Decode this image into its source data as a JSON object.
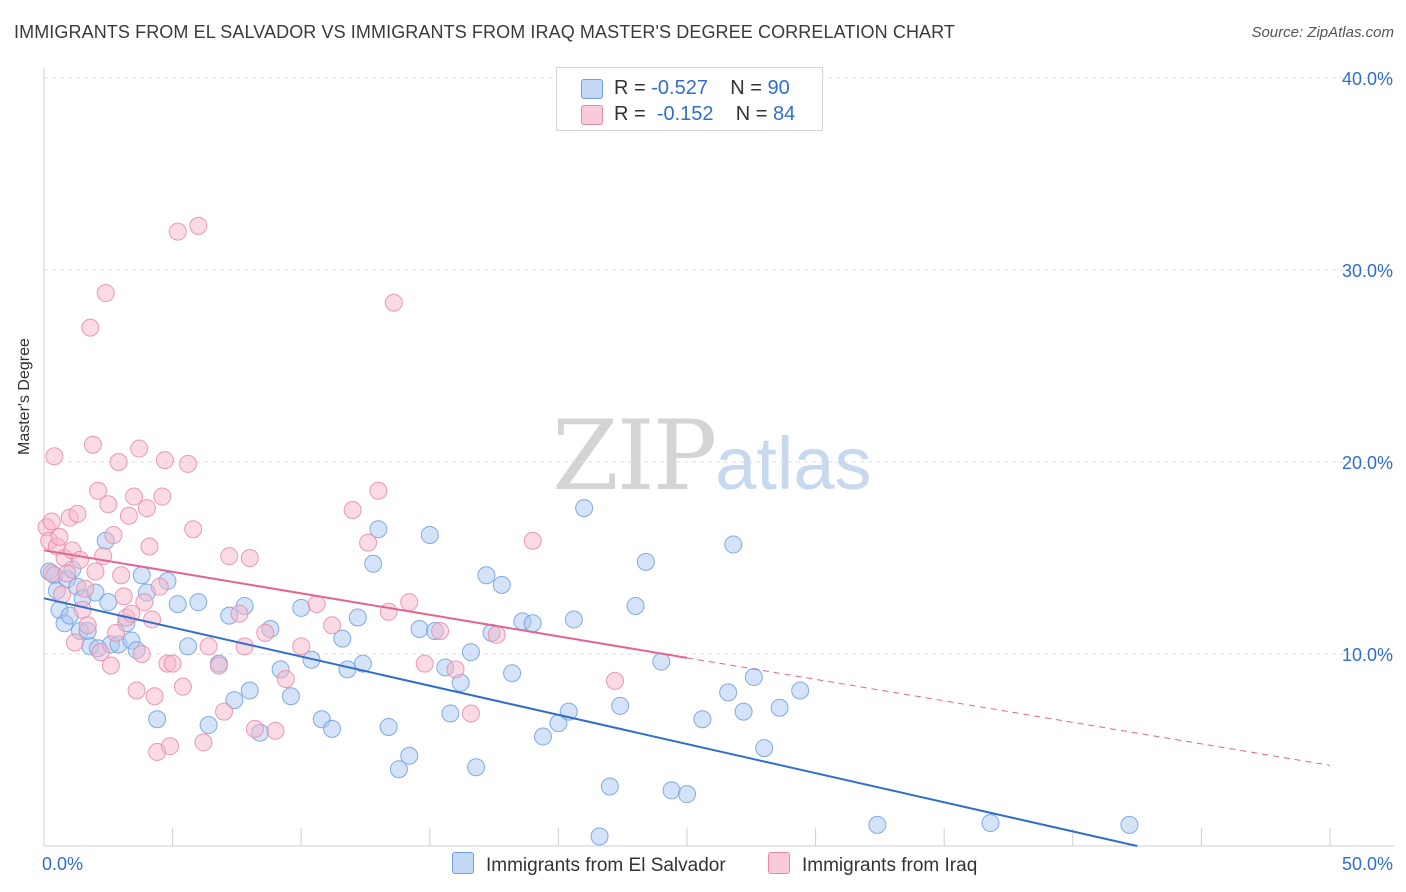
{
  "header": {
    "title": "IMMIGRANTS FROM EL SALVADOR VS IMMIGRANTS FROM IRAQ MASTER'S DEGREE CORRELATION CHART",
    "source": "Source: ZipAtlas.com"
  },
  "watermark": {
    "zip": "ZIP",
    "atlas": "atlas"
  },
  "legend": {
    "rows": [
      {
        "r_label": "R = ",
        "r_value": "-0.527",
        "n_label": "N = ",
        "n_value": "90"
      },
      {
        "r_label": "R = ",
        "r_value": "-0.152",
        "n_label": "N = ",
        "n_value": "84"
      }
    ]
  },
  "colors": {
    "blue_fill": "#aac8f0",
    "blue_stroke": "#6f9fdc",
    "blue_line": "#2f6fca",
    "pink_fill": "#f5b8cb",
    "pink_stroke": "#e98aa8",
    "pink_line": "#e06592",
    "grid": "#dedede",
    "tick_label": "#2f6fca"
  },
  "chart_data": {
    "type": "scatter",
    "title": "IMMIGRANTS FROM EL SALVADOR VS IMMIGRANTS FROM IRAQ MASTER'S DEGREE CORRELATION CHART",
    "xlabel": "",
    "ylabel": "Master's Degree",
    "xlim": [
      0,
      50
    ],
    "ylim": [
      0,
      40
    ],
    "x_tick_labels": [
      "0.0%",
      "50.0%"
    ],
    "y_ticks": [
      10,
      20,
      30,
      40
    ],
    "y_tick_labels": [
      "10.0%",
      "20.0%",
      "30.0%",
      "40.0%"
    ],
    "grid": true,
    "legend_position": "top-center",
    "series": [
      {
        "name": "Immigrants from El Salvador",
        "R": -0.527,
        "N": 90,
        "trend": {
          "x": [
            0,
            42.5
          ],
          "y": [
            12.9,
            0
          ],
          "dashed_to": null
        },
        "points": [
          [
            0.2,
            14.3
          ],
          [
            0.4,
            14.1
          ],
          [
            0.5,
            13.3
          ],
          [
            0.6,
            12.3
          ],
          [
            0.8,
            11.6
          ],
          [
            0.9,
            13.9
          ],
          [
            1.0,
            12.0
          ],
          [
            1.1,
            14.4
          ],
          [
            1.3,
            13.5
          ],
          [
            1.4,
            11.2
          ],
          [
            1.5,
            12.9
          ],
          [
            1.7,
            11.2
          ],
          [
            1.8,
            10.4
          ],
          [
            2.0,
            13.2
          ],
          [
            2.1,
            10.3
          ],
          [
            2.4,
            15.9
          ],
          [
            2.5,
            12.7
          ],
          [
            2.6,
            10.5
          ],
          [
            2.9,
            10.5
          ],
          [
            3.2,
            11.6
          ],
          [
            3.4,
            10.7
          ],
          [
            3.6,
            10.2
          ],
          [
            3.8,
            14.1
          ],
          [
            4.0,
            13.2
          ],
          [
            4.4,
            6.6
          ],
          [
            4.8,
            13.8
          ],
          [
            5.2,
            12.6
          ],
          [
            5.6,
            10.4
          ],
          [
            6.0,
            12.7
          ],
          [
            6.4,
            6.3
          ],
          [
            6.8,
            9.5
          ],
          [
            7.2,
            12.0
          ],
          [
            7.4,
            7.6
          ],
          [
            7.8,
            12.5
          ],
          [
            8.0,
            8.1
          ],
          [
            8.4,
            5.9
          ],
          [
            8.8,
            11.3
          ],
          [
            9.2,
            9.2
          ],
          [
            9.6,
            7.8
          ],
          [
            10.0,
            12.4
          ],
          [
            10.4,
            9.7
          ],
          [
            10.8,
            6.6
          ],
          [
            11.2,
            6.1
          ],
          [
            11.6,
            10.8
          ],
          [
            11.8,
            9.2
          ],
          [
            12.2,
            11.9
          ],
          [
            12.4,
            9.5
          ],
          [
            12.8,
            14.7
          ],
          [
            13.0,
            16.5
          ],
          [
            13.4,
            6.2
          ],
          [
            13.8,
            4.0
          ],
          [
            14.2,
            4.7
          ],
          [
            14.6,
            11.3
          ],
          [
            15.0,
            16.2
          ],
          [
            15.2,
            11.2
          ],
          [
            15.6,
            9.3
          ],
          [
            15.8,
            6.9
          ],
          [
            16.2,
            8.5
          ],
          [
            16.6,
            10.1
          ],
          [
            16.8,
            4.1
          ],
          [
            17.2,
            14.1
          ],
          [
            17.4,
            11.1
          ],
          [
            17.8,
            13.6
          ],
          [
            18.2,
            9.0
          ],
          [
            18.6,
            11.7
          ],
          [
            19.0,
            11.6
          ],
          [
            19.4,
            5.7
          ],
          [
            20.0,
            6.4
          ],
          [
            20.4,
            7.0
          ],
          [
            20.6,
            11.8
          ],
          [
            21.0,
            17.6
          ],
          [
            21.6,
            0.5
          ],
          [
            22.0,
            3.1
          ],
          [
            22.4,
            7.3
          ],
          [
            23.0,
            12.5
          ],
          [
            23.4,
            14.8
          ],
          [
            24.0,
            9.6
          ],
          [
            24.4,
            2.9
          ],
          [
            25.0,
            2.7
          ],
          [
            25.6,
            6.6
          ],
          [
            26.6,
            8.0
          ],
          [
            26.8,
            15.7
          ],
          [
            27.2,
            7.0
          ],
          [
            27.6,
            8.8
          ],
          [
            28.0,
            5.1
          ],
          [
            28.6,
            7.2
          ],
          [
            29.4,
            8.1
          ],
          [
            32.4,
            1.1
          ],
          [
            36.8,
            1.2
          ],
          [
            42.2,
            1.1
          ]
        ]
      },
      {
        "name": "Immigrants from Iraq",
        "R": -0.152,
        "N": 84,
        "trend": {
          "x": [
            0,
            25
          ],
          "y": [
            15.4,
            9.8
          ],
          "dashed_to": [
            50,
            4.2
          ]
        },
        "points": [
          [
            0.1,
            16.6
          ],
          [
            0.2,
            15.9
          ],
          [
            0.3,
            16.9
          ],
          [
            0.3,
            14.2
          ],
          [
            0.4,
            20.3
          ],
          [
            0.5,
            15.6
          ],
          [
            0.6,
            16.1
          ],
          [
            0.7,
            13.1
          ],
          [
            0.8,
            15.0
          ],
          [
            0.9,
            14.2
          ],
          [
            1.0,
            17.1
          ],
          [
            1.1,
            15.4
          ],
          [
            1.2,
            10.6
          ],
          [
            1.3,
            17.3
          ],
          [
            1.4,
            14.9
          ],
          [
            1.5,
            12.3
          ],
          [
            1.6,
            13.4
          ],
          [
            1.7,
            11.5
          ],
          [
            1.8,
            27.0
          ],
          [
            1.9,
            20.9
          ],
          [
            2.0,
            14.3
          ],
          [
            2.1,
            18.5
          ],
          [
            2.2,
            10.1
          ],
          [
            2.3,
            15.1
          ],
          [
            2.4,
            28.8
          ],
          [
            2.5,
            17.8
          ],
          [
            2.6,
            9.4
          ],
          [
            2.7,
            16.2
          ],
          [
            2.8,
            11.1
          ],
          [
            2.9,
            20.0
          ],
          [
            3.0,
            14.1
          ],
          [
            3.1,
            13.0
          ],
          [
            3.2,
            11.9
          ],
          [
            3.3,
            17.2
          ],
          [
            3.4,
            12.1
          ],
          [
            3.5,
            18.2
          ],
          [
            3.6,
            8.1
          ],
          [
            3.7,
            20.7
          ],
          [
            3.8,
            10.0
          ],
          [
            3.9,
            12.7
          ],
          [
            4.0,
            17.6
          ],
          [
            4.1,
            15.6
          ],
          [
            4.2,
            11.8
          ],
          [
            4.3,
            7.8
          ],
          [
            4.4,
            4.9
          ],
          [
            4.5,
            13.5
          ],
          [
            4.6,
            18.2
          ],
          [
            4.7,
            20.1
          ],
          [
            4.8,
            9.5
          ],
          [
            4.9,
            5.2
          ],
          [
            5.0,
            9.5
          ],
          [
            5.2,
            32.0
          ],
          [
            5.4,
            8.3
          ],
          [
            5.6,
            19.9
          ],
          [
            5.8,
            16.5
          ],
          [
            6.0,
            32.3
          ],
          [
            6.2,
            5.4
          ],
          [
            6.4,
            10.4
          ],
          [
            6.8,
            9.4
          ],
          [
            7.0,
            7.0
          ],
          [
            7.2,
            15.1
          ],
          [
            7.6,
            12.1
          ],
          [
            7.8,
            10.4
          ],
          [
            8.0,
            15.0
          ],
          [
            8.2,
            6.1
          ],
          [
            8.6,
            11.1
          ],
          [
            9.0,
            6.0
          ],
          [
            9.4,
            8.7
          ],
          [
            10.0,
            10.4
          ],
          [
            10.6,
            12.6
          ],
          [
            11.2,
            11.5
          ],
          [
            12.0,
            17.5
          ],
          [
            12.6,
            15.8
          ],
          [
            13.0,
            18.5
          ],
          [
            13.4,
            12.2
          ],
          [
            13.6,
            28.3
          ],
          [
            14.2,
            12.7
          ],
          [
            14.8,
            9.5
          ],
          [
            15.4,
            11.2
          ],
          [
            16.0,
            9.2
          ],
          [
            16.6,
            6.9
          ],
          [
            17.6,
            11.0
          ],
          [
            19.0,
            15.9
          ],
          [
            22.2,
            8.6
          ]
        ]
      }
    ]
  },
  "bottom_legend": {
    "items": [
      {
        "label": "Immigrants from El Salvador"
      },
      {
        "label": "Immigrants from Iraq"
      }
    ]
  }
}
